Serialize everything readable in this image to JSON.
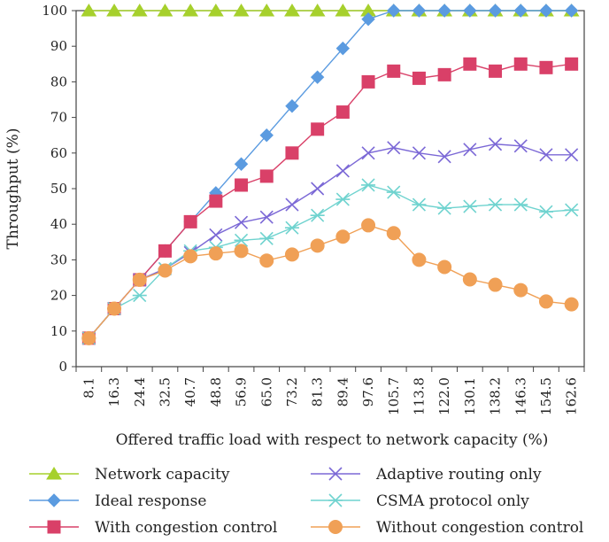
{
  "chart_data": {
    "type": "line",
    "title": "",
    "xlabel": "Offered traffic load with respect to network capacity (%)",
    "ylabel": "Throughput (%)",
    "ylim": [
      0,
      100
    ],
    "yticks": [
      "0",
      "10",
      "20",
      "30",
      "40",
      "50",
      "60",
      "70",
      "80",
      "90",
      "100"
    ],
    "categories": [
      "8.1",
      "16.3",
      "24.4",
      "32.5",
      "40.7",
      "48.8",
      "56.9",
      "65.0",
      "73.2",
      "81.3",
      "89.4",
      "97.6",
      "105.7",
      "113.8",
      "122.0",
      "130.1",
      "138.2",
      "146.3",
      "154.5",
      "162.6"
    ],
    "grid": "none",
    "legend_position": "bottom",
    "series": [
      {
        "name": "Network capacity",
        "marker": "triangle",
        "color": "#a6d02c",
        "values": [
          100,
          100,
          100,
          100,
          100,
          100,
          100,
          100,
          100,
          100,
          100,
          100,
          100,
          100,
          100,
          100,
          100,
          100,
          100,
          100
        ]
      },
      {
        "name": "Ideal response",
        "marker": "diamond",
        "color": "#5b9be0",
        "values": [
          8,
          16.3,
          24.4,
          32.5,
          40.7,
          48.8,
          56.9,
          65.0,
          73.2,
          81.3,
          89.4,
          97.6,
          100,
          100,
          100,
          100,
          100,
          100,
          100,
          100
        ]
      },
      {
        "name": "With congestion control",
        "marker": "square",
        "color": "#d94068",
        "values": [
          8,
          16.3,
          24.4,
          32.5,
          40.7,
          46.5,
          51,
          53.5,
          60,
          66.7,
          71.5,
          80,
          83,
          81,
          82,
          85,
          83,
          85,
          84,
          85
        ]
      },
      {
        "name": "Adaptive routing only",
        "marker": "x",
        "color": "#7b68d6",
        "values": [
          8,
          16.3,
          24.4,
          27.5,
          32,
          37,
          40.5,
          42,
          45.5,
          50,
          55,
          60,
          61.5,
          60,
          59,
          61,
          62.5,
          62,
          59.5,
          59.5
        ]
      },
      {
        "name": "CSMA protocol only",
        "marker": "asterisk",
        "color": "#6fd3cf",
        "values": [
          8,
          16.3,
          20,
          27.5,
          32.5,
          33.5,
          35.5,
          36,
          39,
          42.5,
          47,
          51,
          49,
          45.5,
          44.5,
          45,
          45.5,
          45.5,
          43.5,
          44
        ]
      },
      {
        "name": "Without congestion control",
        "marker": "circle",
        "color": "#f0a056",
        "values": [
          8,
          16.3,
          24.4,
          27,
          31,
          31.8,
          32.5,
          29.8,
          31.5,
          34,
          36.5,
          39.7,
          37.5,
          30,
          28,
          24.5,
          23,
          21.5,
          18.3,
          17.5
        ]
      }
    ]
  }
}
